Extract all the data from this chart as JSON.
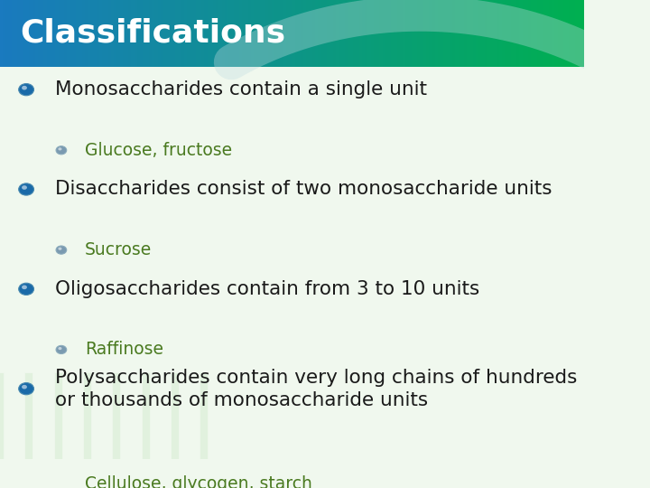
{
  "title": "Classifications",
  "title_color": "#ffffff",
  "title_bg_gradient_left": "#1a7abf",
  "title_bg_gradient_right": "#00b050",
  "slide_bg_color": "#f0f8ee",
  "bullet_items": [
    {
      "text": "Monosaccharides contain a single unit",
      "level": 0,
      "color": "#1a1a1a",
      "bullet_color": "#1a6aa8"
    },
    {
      "text": "Glucose, fructose",
      "level": 1,
      "color": "#4a7a20",
      "bullet_color": "#7a9ab0"
    },
    {
      "text": "Disaccharides consist of two monosaccharide units",
      "level": 0,
      "color": "#1a1a1a",
      "bullet_color": "#1a6aa8"
    },
    {
      "text": "Sucrose",
      "level": 1,
      "color": "#4a7a20",
      "bullet_color": "#7a9ab0"
    },
    {
      "text": "Oligosaccharides contain from 3 to 10 units",
      "level": 0,
      "color": "#1a1a1a",
      "bullet_color": "#1a6aa8"
    },
    {
      "text": "Raffinose",
      "level": 1,
      "color": "#4a7a20",
      "bullet_color": "#7a9ab0"
    },
    {
      "text": "Polysaccharides contain very long chains of hundreds\nor thousands of monosaccharide units",
      "level": 0,
      "color": "#1a1a1a",
      "bullet_color": "#1a6aa8"
    },
    {
      "text": "Cellulose, glycogen, starch",
      "level": 1,
      "color": "#4a7a20",
      "bullet_color": "#7a9ab0"
    }
  ],
  "title_bar_height": 0.145,
  "main_font_size": 15.5,
  "sub_font_size": 13.5,
  "title_font_size": 26
}
